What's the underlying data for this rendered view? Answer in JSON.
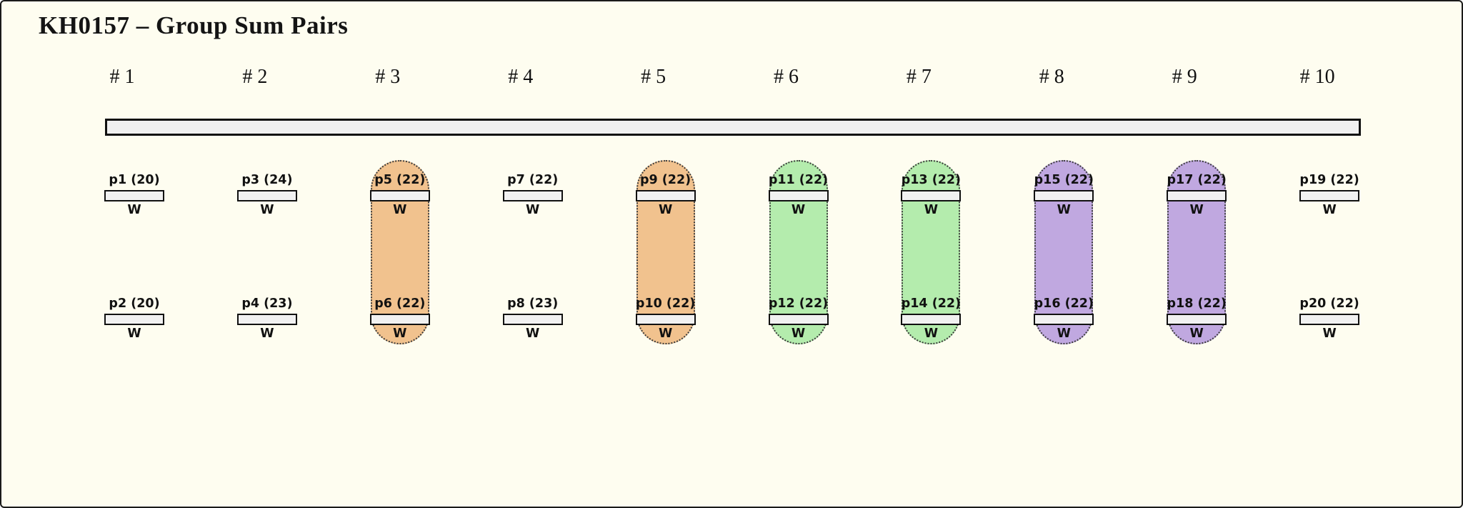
{
  "title": "KH0157 – Group Sum Pairs",
  "colors": {
    "background": "#FEFDF0",
    "bar_fill": "#F0F0F0",
    "bar_border": "#111111",
    "capsule_border": "#3B3B3B",
    "groups": {
      "orange": "#F1C28E",
      "green": "#B4ECAD",
      "purple": "#C0A8E0"
    }
  },
  "columns": [
    {
      "header": "# 1",
      "group": "none",
      "top": {
        "label": "p1 (20)",
        "sub": "W"
      },
      "bottom": {
        "label": "p2 (20)",
        "sub": "W"
      }
    },
    {
      "header": "# 2",
      "group": "none",
      "top": {
        "label": "p3 (24)",
        "sub": "W"
      },
      "bottom": {
        "label": "p4 (23)",
        "sub": "W"
      }
    },
    {
      "header": "# 3",
      "group": "orange",
      "top": {
        "label": "p5 (22)",
        "sub": "W"
      },
      "bottom": {
        "label": "p6 (22)",
        "sub": "W"
      }
    },
    {
      "header": "# 4",
      "group": "none",
      "top": {
        "label": "p7 (22)",
        "sub": "W"
      },
      "bottom": {
        "label": "p8 (23)",
        "sub": "W"
      }
    },
    {
      "header": "# 5",
      "group": "orange",
      "top": {
        "label": "p9 (22)",
        "sub": "W"
      },
      "bottom": {
        "label": "p10 (22)",
        "sub": "W"
      }
    },
    {
      "header": "# 6",
      "group": "green",
      "top": {
        "label": "p11 (22)",
        "sub": "W"
      },
      "bottom": {
        "label": "p12 (22)",
        "sub": "W"
      }
    },
    {
      "header": "# 7",
      "group": "green",
      "top": {
        "label": "p13 (22)",
        "sub": "W"
      },
      "bottom": {
        "label": "p14 (22)",
        "sub": "W"
      }
    },
    {
      "header": "# 8",
      "group": "purple",
      "top": {
        "label": "p15 (22)",
        "sub": "W"
      },
      "bottom": {
        "label": "p16 (22)",
        "sub": "W"
      }
    },
    {
      "header": "# 9",
      "group": "purple",
      "top": {
        "label": "p17 (22)",
        "sub": "W"
      },
      "bottom": {
        "label": "p18 (22)",
        "sub": "W"
      }
    },
    {
      "header": "# 10",
      "group": "none",
      "top": {
        "label": "p19 (22)",
        "sub": "W"
      },
      "bottom": {
        "label": "p20 (22)",
        "sub": "W"
      }
    }
  ]
}
